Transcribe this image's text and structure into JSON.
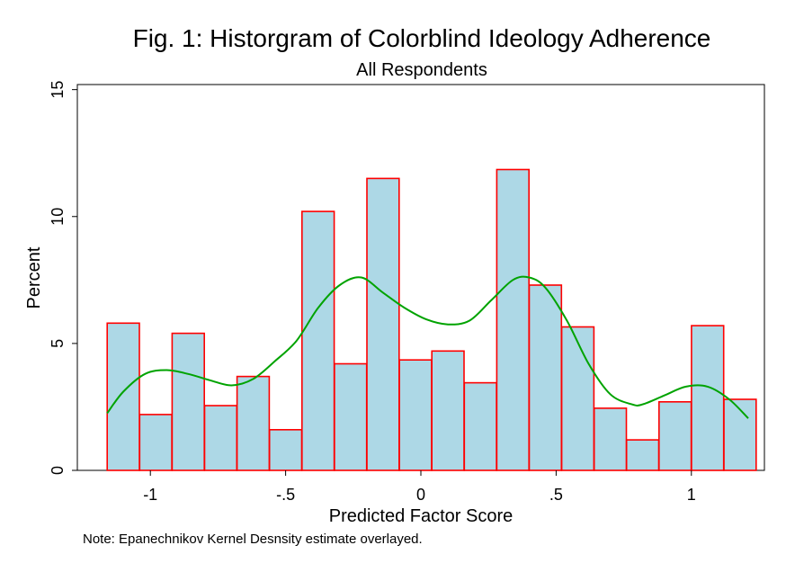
{
  "note": "Note: Epanechnikov Kernel Desnsity estimate overlayed.",
  "colors": {
    "bar_fill": "#add8e6",
    "bar_stroke": "#ff0000",
    "kde_line": "#00a300",
    "axis": "#000000"
  },
  "chart_data": {
    "type": "bar",
    "title": "Fig. 1: Historgram of Colorblind Ideology Adherence",
    "subtitle": "All Respondents",
    "xlabel": "Predicted Factor Score",
    "ylabel": "Percent",
    "xlim": [
      -1.27,
      1.27
    ],
    "ylim": [
      0,
      15.2
    ],
    "xticks": [
      -1,
      -0.5,
      0,
      0.5,
      1
    ],
    "xtick_labels": [
      "-1",
      "-.5",
      "0",
      ".5",
      "1"
    ],
    "yticks": [
      0,
      5,
      10,
      15
    ],
    "ytick_labels": [
      "0",
      "5",
      "10",
      "15"
    ],
    "grid": false,
    "bin_width": 0.119,
    "bins": [
      {
        "center": -1.1,
        "value": 5.8
      },
      {
        "center": -0.98,
        "value": 2.2
      },
      {
        "center": -0.86,
        "value": 5.4
      },
      {
        "center": -0.74,
        "value": 2.55
      },
      {
        "center": -0.62,
        "value": 3.7
      },
      {
        "center": -0.5,
        "value": 1.6
      },
      {
        "center": -0.38,
        "value": 10.2
      },
      {
        "center": -0.26,
        "value": 4.2
      },
      {
        "center": -0.14,
        "value": 11.5
      },
      {
        "center": -0.02,
        "value": 4.35
      },
      {
        "center": 0.1,
        "value": 4.7
      },
      {
        "center": 0.22,
        "value": 3.45
      },
      {
        "center": 0.34,
        "value": 11.85
      },
      {
        "center": 0.46,
        "value": 7.3
      },
      {
        "center": 0.58,
        "value": 5.65
      },
      {
        "center": 0.7,
        "value": 2.45
      },
      {
        "center": 0.82,
        "value": 1.2
      },
      {
        "center": 0.94,
        "value": 2.7
      },
      {
        "center": 1.06,
        "value": 5.7
      },
      {
        "center": 1.18,
        "value": 2.8
      }
    ],
    "kde": {
      "name": "Epanechnikov kernel density",
      "x": [
        -1.16,
        -1.1,
        -1.02,
        -0.94,
        -0.86,
        -0.78,
        -0.7,
        -0.62,
        -0.54,
        -0.46,
        -0.38,
        -0.3,
        -0.22,
        -0.14,
        -0.06,
        0.02,
        0.1,
        0.18,
        0.26,
        0.34,
        0.4,
        0.46,
        0.54,
        0.62,
        0.7,
        0.78,
        0.82,
        0.9,
        0.98,
        1.06,
        1.14,
        1.21
      ],
      "y": [
        2.25,
        3.1,
        3.8,
        3.95,
        3.8,
        3.55,
        3.35,
        3.6,
        4.3,
        5.1,
        6.4,
        7.3,
        7.6,
        7.0,
        6.4,
        5.95,
        5.75,
        5.9,
        6.7,
        7.5,
        7.6,
        7.2,
        5.9,
        4.2,
        3.0,
        2.6,
        2.6,
        2.95,
        3.3,
        3.3,
        2.8,
        2.05
      ]
    }
  }
}
